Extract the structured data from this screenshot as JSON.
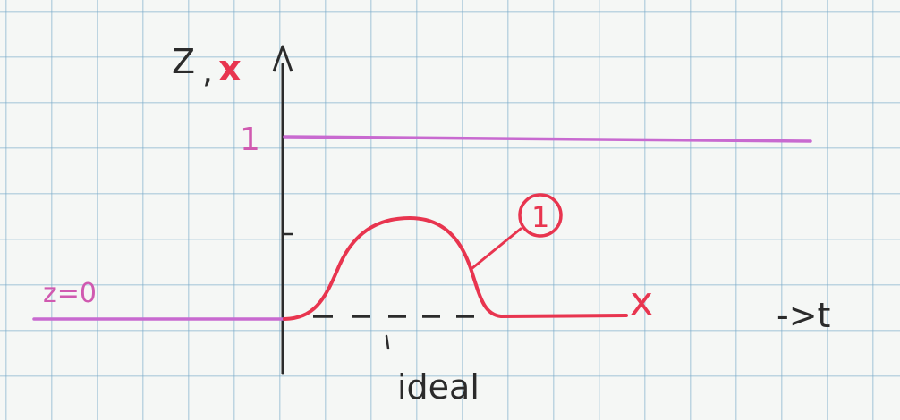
{
  "colors": {
    "axis": "#2b2b2b",
    "reference": "#c86ad0",
    "response": "#e8354f",
    "ink": "#2b2b2b",
    "label_pink": "#d05ab0"
  },
  "diagram": {
    "y_axis_label_z": "Z",
    "y_axis_label_sep": ",",
    "y_axis_label_x": "x",
    "x_axis_label": "->t",
    "reference_level_label": "1",
    "start_level_label": "z=0",
    "curve_label": "x",
    "curve_marker": "1",
    "ideal_label": "ideal"
  }
}
